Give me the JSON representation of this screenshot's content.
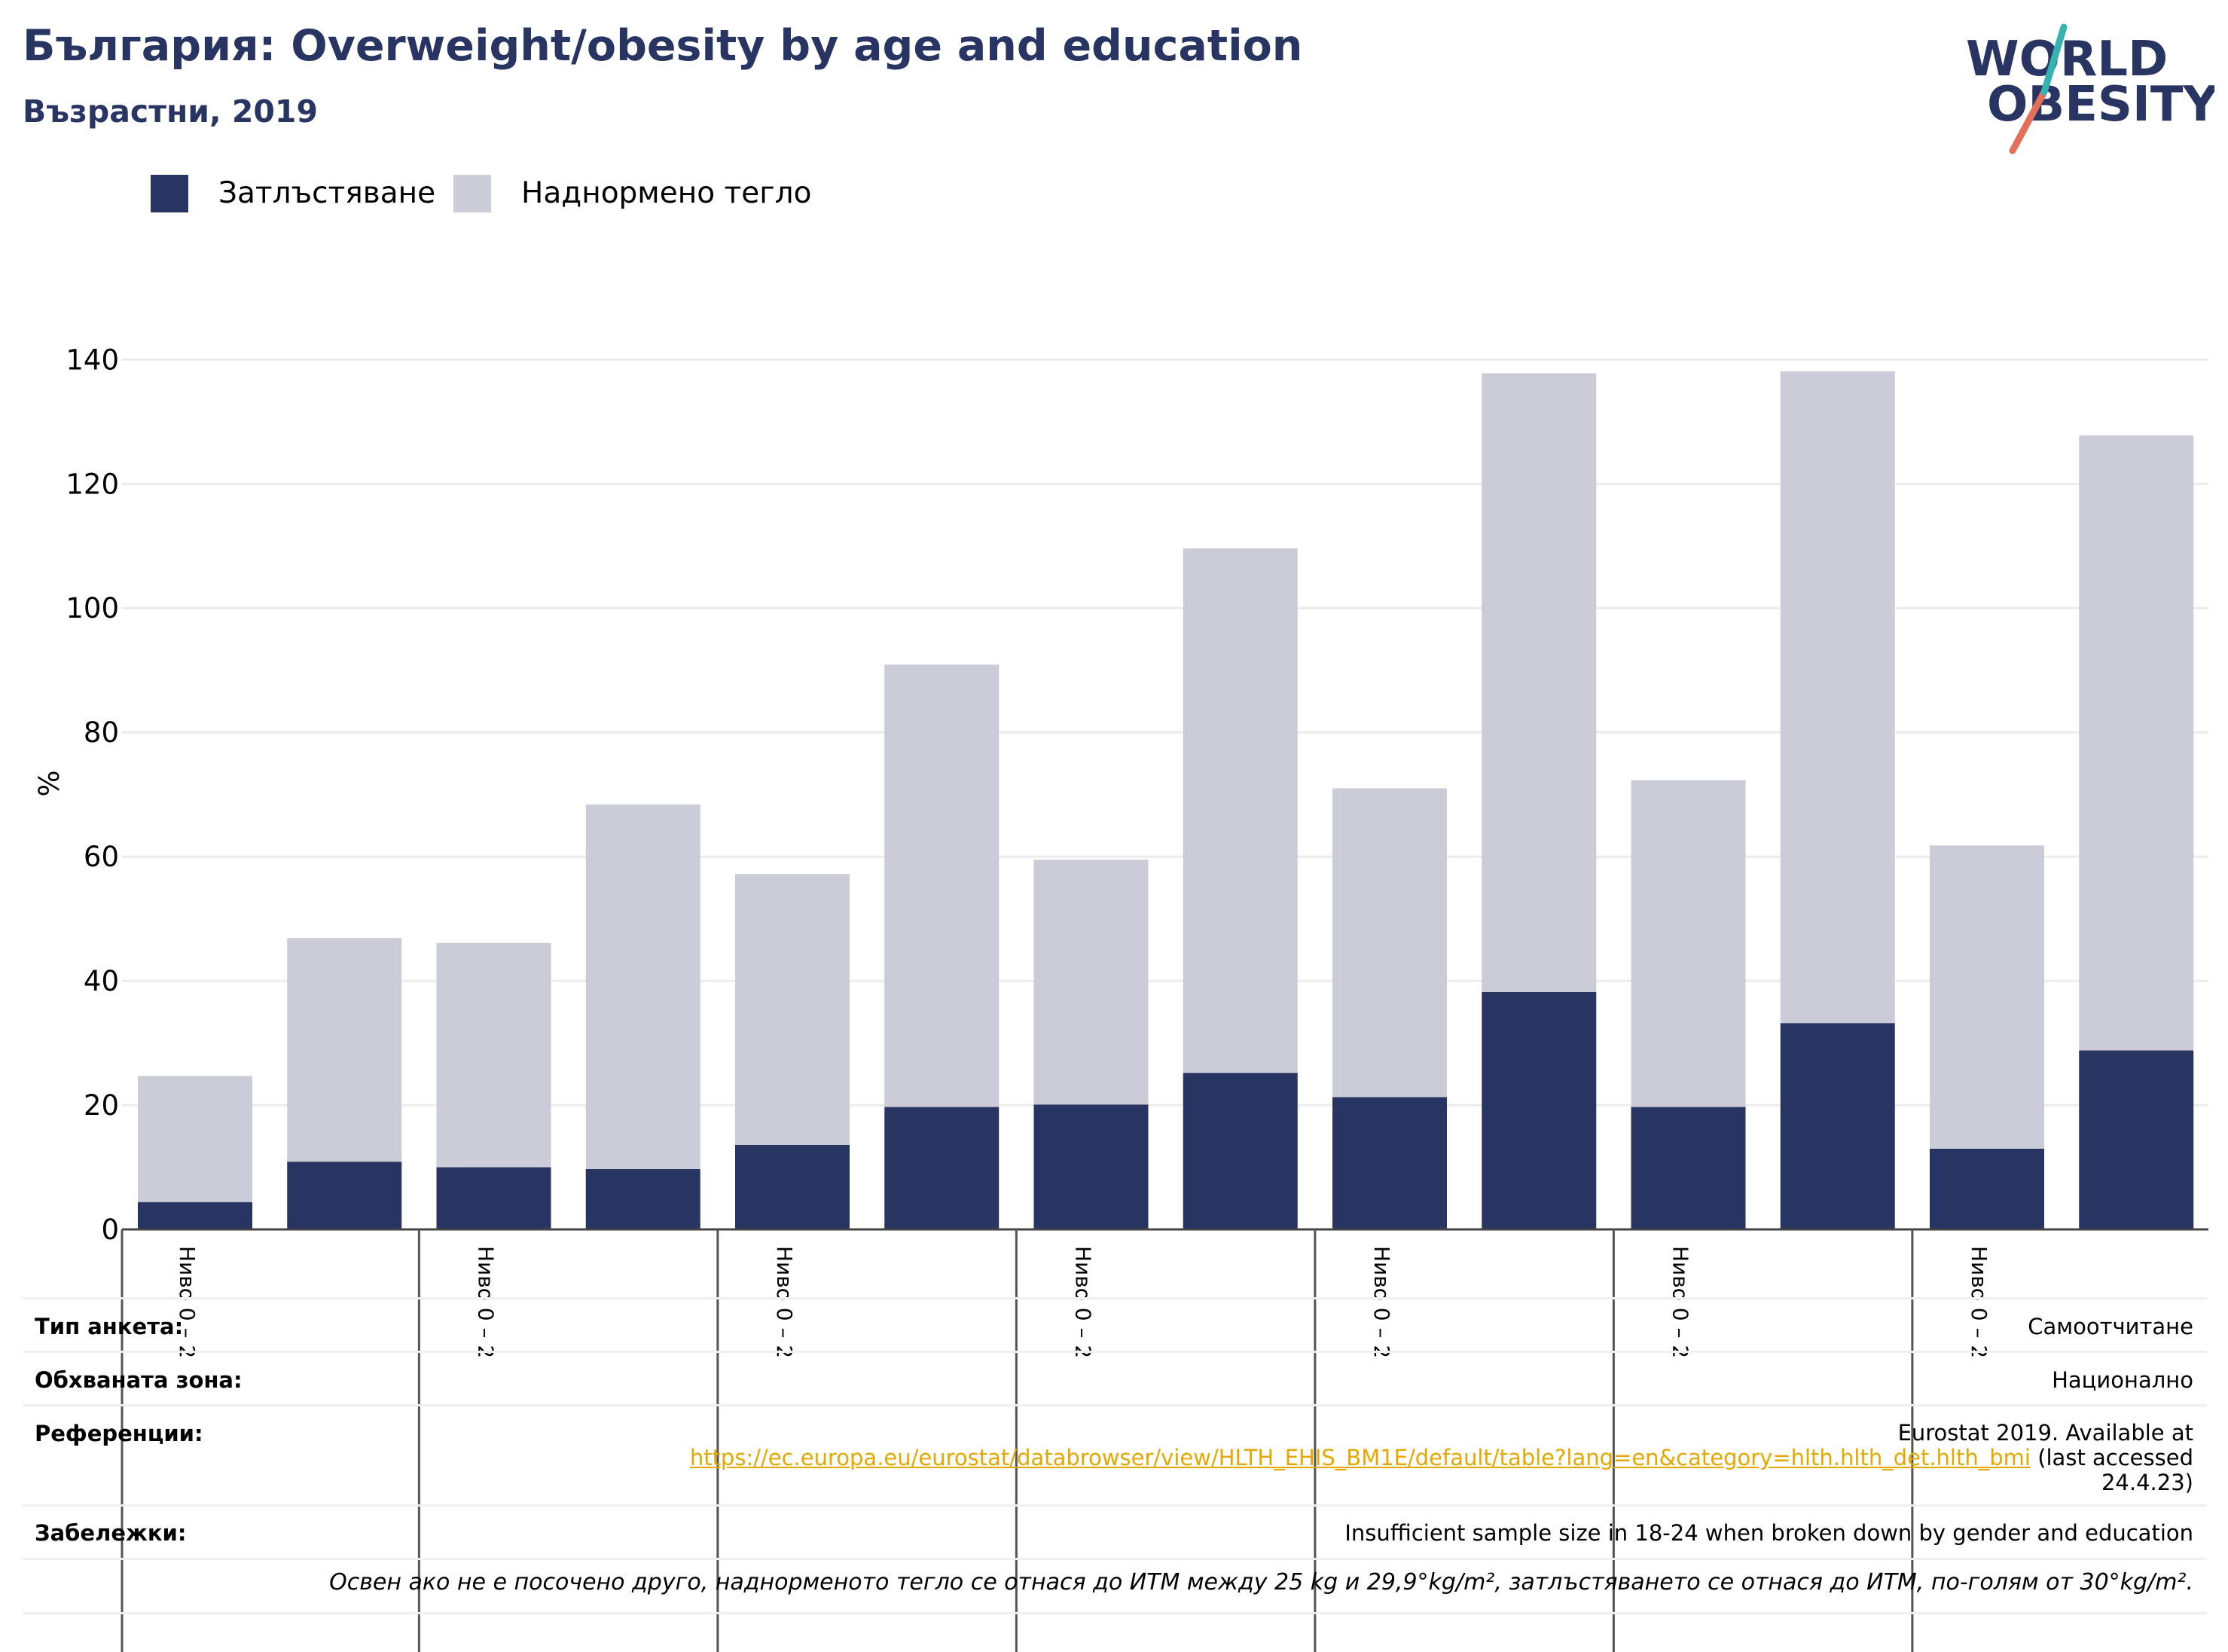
{
  "title": "България: Overweight/obesity by age and education",
  "subtitle": "Възрастни, 2019",
  "logo": {
    "line1": "WORLD",
    "line2": "OBESITY"
  },
  "legend": [
    {
      "label": "Затлъстяване",
      "color": "#283562"
    },
    {
      "label": "Наднормено тегло",
      "color": "#cbccd8"
    }
  ],
  "chart_data": {
    "type": "bar",
    "stacked": true,
    "ylabel": "%",
    "ylim": [
      0,
      140
    ],
    "yticks": [
      0,
      20,
      40,
      60,
      80,
      100,
      120,
      140
    ],
    "grid": true,
    "legend_position": "top-left",
    "categories": [
      "Ниво 0 – 2",
      "",
      "Ниво 0 – 2",
      "",
      "Ниво 0 – 2",
      "",
      "Ниво 0 – 2",
      "",
      "Ниво 0 – 2",
      "",
      "Ниво 0 – 2",
      "",
      "Ниво 0 – 2",
      ""
    ],
    "series": [
      {
        "name": "Затлъстяване",
        "color": "#283562",
        "values": [
          4.4,
          10.9,
          10.0,
          9.7,
          13.6,
          19.7,
          20.1,
          25.2,
          21.3,
          38.2,
          19.7,
          33.2,
          13.0,
          28.8
        ]
      },
      {
        "name": "Наднормено тегло",
        "color": "#cbccd8",
        "values": [
          20.3,
          36.0,
          36.1,
          58.7,
          43.6,
          71.2,
          39.4,
          84.4,
          49.7,
          99.6,
          52.6,
          104.9,
          48.8,
          99.0
        ]
      }
    ]
  },
  "info": {
    "survey_type_label": "Тип анкета:",
    "survey_type_value": "Самоотчитане",
    "coverage_label": "Обхваната зона:",
    "coverage_value": "Национално",
    "references_label": "Референции:",
    "references_line1": "Eurostat 2019. Available at",
    "references_link": "https://ec.europa.eu/eurostat/databrowser/view/HLTH_EHIS_BM1E/default/table?lang=en&category=hlth.hlth_det.hlth_bmi",
    "references_tail": "(last accessed",
    "references_date": "24.4.23)",
    "notes_label": "Забележки:",
    "notes_value": "Insufficient sample size in 18-24 when broken down by gender and education",
    "definition_note": "Освен ако не е посочено друго, наднорменото тегло се отнася до ИТМ между 25 kg и 29,9°kg/m², затлъстяването се отнася до ИТМ, по-голям от 30°kg/m²."
  }
}
